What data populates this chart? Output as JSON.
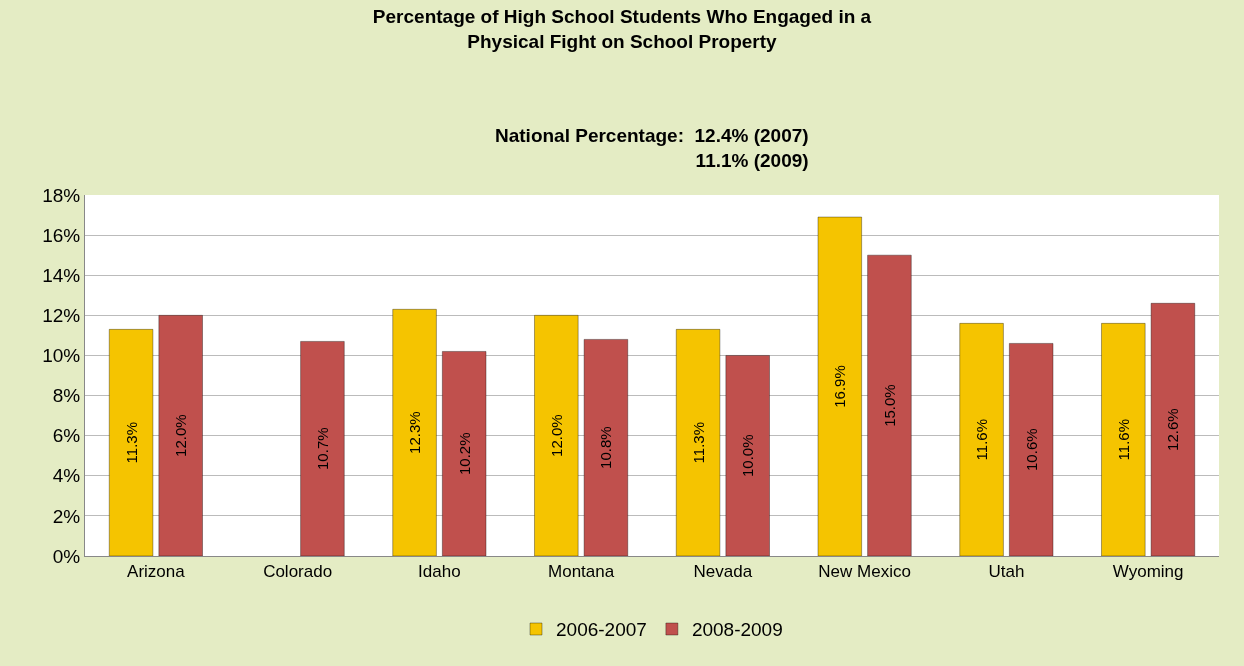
{
  "chart_data": {
    "type": "bar",
    "title": "Percentage of High School Students Who Engaged in a\nPhysical Fight on School Property",
    "subtitle": "National Percentage:  12.4% (2007)\n11.1% (2009)",
    "categories": [
      "Arizona",
      "Colorado",
      "Idaho",
      "Montana",
      "Nevada",
      "New Mexico",
      "Utah",
      "Wyoming"
    ],
    "series": [
      {
        "name": "2006-2007",
        "color": "#f5c400",
        "values": [
          11.3,
          null,
          12.3,
          12.0,
          11.3,
          16.9,
          11.6,
          11.6
        ],
        "value_labels": [
          "11.3%",
          null,
          "12.3%",
          "12.0%",
          "11.3%",
          "16.9%",
          "11.6%",
          "11.6%"
        ]
      },
      {
        "name": "2008-2009",
        "color": "#c0504d",
        "values": [
          12.0,
          10.7,
          10.2,
          10.8,
          10.0,
          15.0,
          10.6,
          12.6
        ],
        "value_labels": [
          "12.0%",
          "10.7%",
          "10.2%",
          "10.8%",
          "10.0%",
          "15.0%",
          "10.6%",
          "12.6%"
        ]
      }
    ],
    "ylim": [
      0,
      18
    ],
    "yticks": [
      {
        "value": 0,
        "label": "0%"
      },
      {
        "value": 2,
        "label": "2%"
      },
      {
        "value": 4,
        "label": "4%"
      },
      {
        "value": 6,
        "label": "6%"
      },
      {
        "value": 8,
        "label": "8%"
      },
      {
        "value": 10,
        "label": "10%"
      },
      {
        "value": 12,
        "label": "12%"
      },
      {
        "value": 14,
        "label": "14%"
      },
      {
        "value": 16,
        "label": "16%"
      },
      {
        "value": 18,
        "label": "18%"
      }
    ],
    "grid": "y",
    "legend": "bottom"
  }
}
